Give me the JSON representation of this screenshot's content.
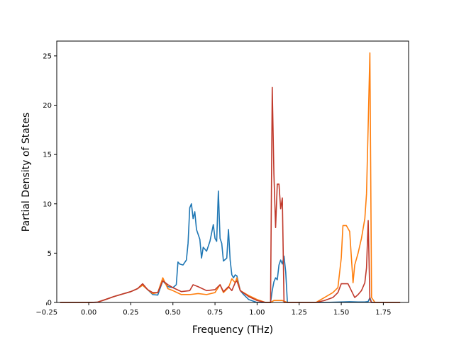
{
  "chart_data": {
    "type": "line",
    "xlabel": "Frequency (THz)",
    "ylabel": "Partial Density of States",
    "xlim": [
      -0.19,
      1.9
    ],
    "ylim": [
      0,
      26.5
    ],
    "xticks": [
      -0.25,
      0.0,
      0.25,
      0.5,
      0.75,
      1.0,
      1.25,
      1.5,
      1.75
    ],
    "xtick_labels": [
      "−0.25",
      "0.00",
      "0.25",
      "0.50",
      "0.75",
      "1.00",
      "1.25",
      "1.50",
      "1.75"
    ],
    "yticks": [
      0,
      5,
      10,
      15,
      20,
      25
    ],
    "ytick_labels": [
      "0",
      "5",
      "10",
      "15",
      "20",
      "25"
    ],
    "grid": false,
    "series": [
      {
        "color": "#1f77b4",
        "x": [
          -0.17,
          0.0,
          0.05,
          0.1,
          0.15,
          0.2,
          0.25,
          0.29,
          0.32,
          0.35,
          0.38,
          0.41,
          0.44,
          0.47,
          0.5,
          0.52,
          0.53,
          0.54,
          0.56,
          0.58,
          0.59,
          0.6,
          0.61,
          0.62,
          0.63,
          0.64,
          0.66,
          0.67,
          0.68,
          0.7,
          0.72,
          0.74,
          0.75,
          0.76,
          0.77,
          0.78,
          0.79,
          0.8,
          0.82,
          0.83,
          0.84,
          0.85,
          0.86,
          0.87,
          0.88,
          0.9,
          0.92,
          0.95,
          1.0,
          1.05,
          1.08,
          1.09,
          1.1,
          1.11,
          1.12,
          1.13,
          1.14,
          1.15,
          1.16,
          1.17,
          1.18,
          1.2,
          1.3,
          1.4,
          1.5,
          1.55,
          1.6,
          1.64,
          1.66,
          1.67,
          1.68,
          1.7,
          1.85
        ],
        "y": [
          0,
          0,
          0.02,
          0.3,
          0.6,
          0.85,
          1.1,
          1.4,
          1.75,
          1.3,
          0.8,
          0.75,
          2.2,
          1.6,
          1.5,
          1.8,
          4.1,
          3.9,
          3.8,
          4.3,
          6.0,
          9.6,
          10.0,
          8.5,
          9.2,
          7.4,
          6.4,
          4.5,
          5.6,
          5.2,
          6.2,
          7.9,
          6.5,
          6.2,
          11.3,
          6.5,
          6.0,
          4.2,
          4.5,
          7.4,
          4.3,
          2.8,
          2.5,
          2.8,
          2.7,
          1.2,
          0.8,
          0.3,
          0,
          0,
          0,
          1.2,
          2.1,
          2.5,
          2.3,
          3.8,
          4.3,
          3.9,
          4.7,
          3.1,
          0,
          0,
          0,
          0,
          0.05,
          0.08,
          0.05,
          0.05,
          0.1,
          0.5,
          0,
          0,
          0
        ]
      },
      {
        "color": "#ff7f0e",
        "x": [
          -0.17,
          0.0,
          0.05,
          0.1,
          0.15,
          0.2,
          0.25,
          0.29,
          0.32,
          0.35,
          0.38,
          0.41,
          0.44,
          0.47,
          0.5,
          0.55,
          0.6,
          0.65,
          0.7,
          0.75,
          0.78,
          0.8,
          0.83,
          0.85,
          0.87,
          0.88,
          0.9,
          0.95,
          1.0,
          1.05,
          1.08,
          1.1,
          1.12,
          1.15,
          1.18,
          1.2,
          1.3,
          1.35,
          1.4,
          1.45,
          1.48,
          1.5,
          1.51,
          1.53,
          1.55,
          1.57,
          1.58,
          1.6,
          1.62,
          1.64,
          1.65,
          1.66,
          1.67,
          1.68,
          1.7,
          1.85
        ],
        "y": [
          0,
          0,
          0.02,
          0.3,
          0.6,
          0.85,
          1.1,
          1.4,
          1.75,
          1.3,
          0.9,
          1.0,
          2.5,
          1.4,
          1.2,
          0.8,
          0.8,
          0.9,
          0.8,
          1.0,
          1.8,
          1.0,
          1.5,
          2.4,
          2.0,
          2.5,
          1.2,
          0.7,
          0.3,
          0,
          0,
          0.2,
          0.2,
          0.2,
          0,
          0,
          0,
          0,
          0.5,
          1.0,
          1.5,
          4.5,
          7.8,
          7.8,
          7.2,
          2.0,
          3.8,
          5.0,
          6.5,
          8.5,
          11.0,
          18.0,
          25.3,
          0.5,
          0,
          0
        ]
      },
      {
        "color": "#c0392b",
        "x": [
          -0.17,
          0.0,
          0.05,
          0.1,
          0.15,
          0.2,
          0.25,
          0.29,
          0.32,
          0.35,
          0.38,
          0.41,
          0.44,
          0.47,
          0.5,
          0.55,
          0.6,
          0.62,
          0.65,
          0.7,
          0.75,
          0.78,
          0.8,
          0.83,
          0.85,
          0.87,
          0.88,
          0.9,
          0.95,
          1.0,
          1.05,
          1.08,
          1.09,
          1.1,
          1.11,
          1.12,
          1.13,
          1.14,
          1.15,
          1.16,
          1.17,
          1.18,
          1.2,
          1.35,
          1.4,
          1.45,
          1.48,
          1.5,
          1.52,
          1.54,
          1.56,
          1.58,
          1.6,
          1.62,
          1.64,
          1.65,
          1.66,
          1.67,
          1.68,
          1.7,
          1.85
        ],
        "y": [
          0,
          0,
          0.02,
          0.3,
          0.6,
          0.85,
          1.1,
          1.4,
          1.9,
          1.3,
          1.0,
          1.0,
          2.2,
          1.8,
          1.5,
          1.1,
          1.2,
          1.8,
          1.6,
          1.2,
          1.3,
          1.8,
          1.1,
          1.6,
          1.2,
          2.0,
          2.2,
          1.2,
          0.6,
          0.2,
          0,
          0,
          21.8,
          13.0,
          7.6,
          12.0,
          12.0,
          9.5,
          10.6,
          0,
          0,
          0,
          0,
          0,
          0.2,
          0.5,
          1.0,
          1.9,
          1.9,
          1.9,
          1.2,
          0.5,
          0.8,
          1.2,
          2.0,
          3.5,
          8.3,
          0.3,
          0,
          0,
          0
        ]
      }
    ]
  }
}
